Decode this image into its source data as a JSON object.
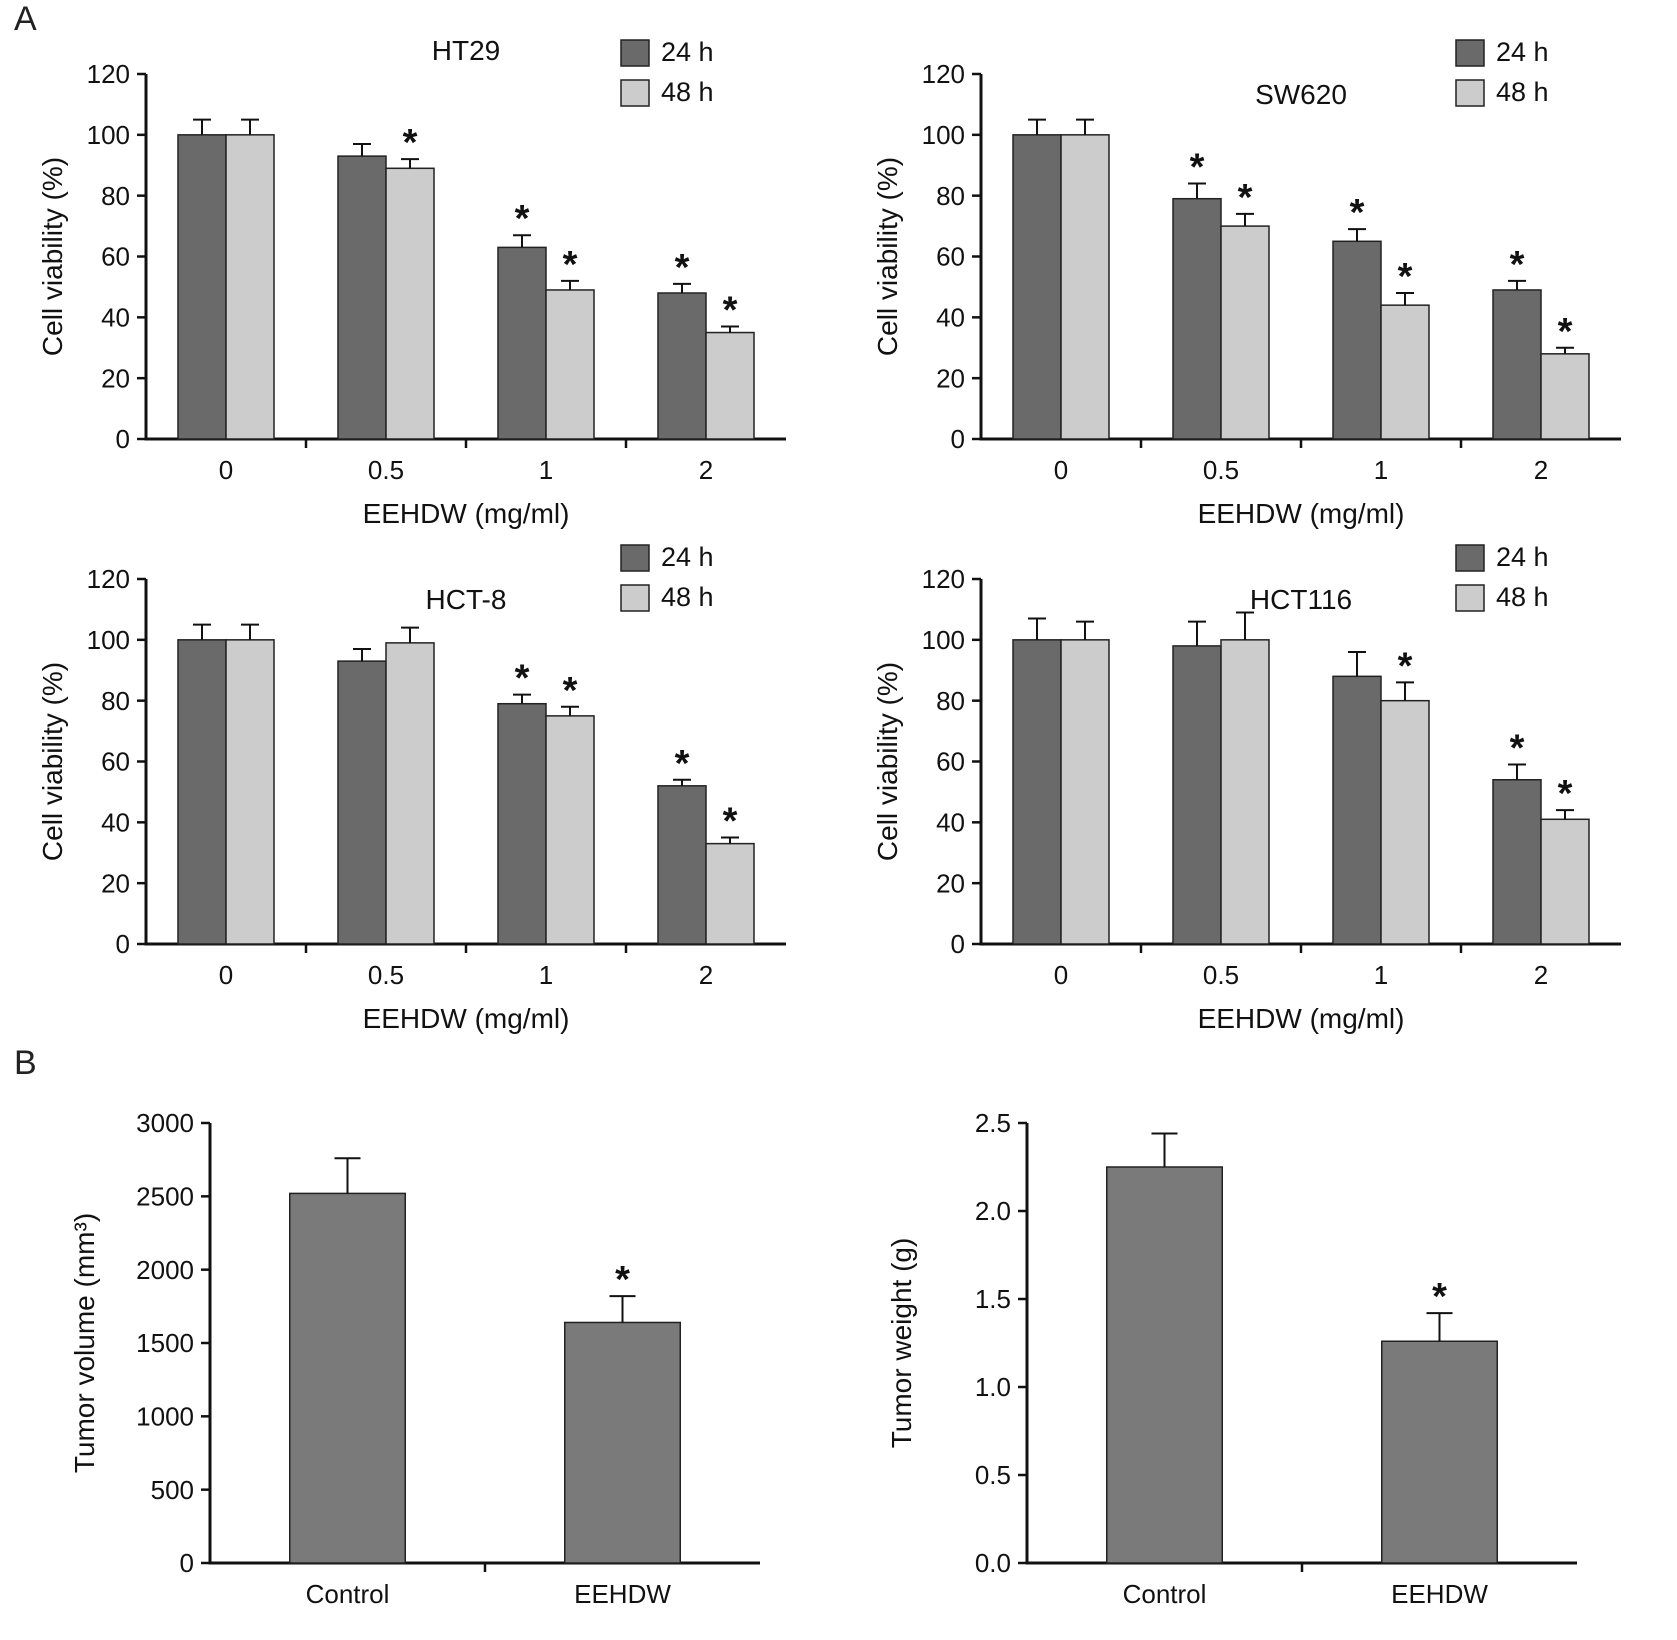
{
  "panels": {
    "a": {
      "label": "A"
    },
    "b": {
      "label": "B"
    }
  },
  "colors": {
    "series_24h": "#6a6a6a",
    "series_48h": "#cccccc",
    "tumor_bar": "#7a7a7a"
  },
  "chart_data": [
    {
      "id": "ht29",
      "type": "bar",
      "panel": "a",
      "title": "HT29",
      "title_inside": false,
      "categories": [
        "0",
        "0.5",
        "1",
        "2"
      ],
      "xlabel": "EEHDW (mg/ml)",
      "ylabel": "Cell viability (%)",
      "ylim": [
        0,
        120
      ],
      "ytick_step": 20,
      "ytick_decimals": 0,
      "legend_show": true,
      "legend_position": "top-right",
      "grid": false,
      "series": [
        {
          "name": "24 h",
          "color": "#6a6a6a",
          "values": [
            100,
            93,
            63,
            48
          ],
          "errors": [
            5,
            4,
            4,
            3
          ],
          "sig": [
            false,
            false,
            true,
            true
          ]
        },
        {
          "name": "48 h",
          "color": "#cccccc",
          "values": [
            100,
            89,
            49,
            35
          ],
          "errors": [
            5,
            3,
            3,
            2
          ],
          "sig": [
            false,
            true,
            true,
            true
          ]
        }
      ]
    },
    {
      "id": "sw620",
      "type": "bar",
      "panel": "a",
      "title": "SW620",
      "title_inside": true,
      "categories": [
        "0",
        "0.5",
        "1",
        "2"
      ],
      "xlabel": "EEHDW (mg/ml)",
      "ylabel": "Cell viability (%)",
      "ylim": [
        0,
        120
      ],
      "ytick_step": 20,
      "ytick_decimals": 0,
      "legend_show": true,
      "legend_position": "top-right",
      "grid": false,
      "series": [
        {
          "name": "24 h",
          "color": "#6a6a6a",
          "values": [
            100,
            79,
            65,
            49
          ],
          "errors": [
            5,
            5,
            4,
            3
          ],
          "sig": [
            false,
            true,
            true,
            true
          ]
        },
        {
          "name": "48 h",
          "color": "#cccccc",
          "values": [
            100,
            70,
            44,
            28
          ],
          "errors": [
            5,
            4,
            4,
            2
          ],
          "sig": [
            false,
            true,
            true,
            true
          ]
        }
      ]
    },
    {
      "id": "hct8",
      "type": "bar",
      "panel": "a",
      "title": "HCT-8",
      "title_inside": true,
      "categories": [
        "0",
        "0.5",
        "1",
        "2"
      ],
      "xlabel": "EEHDW (mg/ml)",
      "ylabel": "Cell viability (%)",
      "ylim": [
        0,
        120
      ],
      "ytick_step": 20,
      "ytick_decimals": 0,
      "legend_show": true,
      "legend_position": "top-right",
      "grid": false,
      "series": [
        {
          "name": "24 h",
          "color": "#6a6a6a",
          "values": [
            100,
            93,
            79,
            52
          ],
          "errors": [
            5,
            4,
            3,
            2
          ],
          "sig": [
            false,
            false,
            true,
            true
          ]
        },
        {
          "name": "48 h",
          "color": "#cccccc",
          "values": [
            100,
            99,
            75,
            33
          ],
          "errors": [
            5,
            5,
            3,
            2
          ],
          "sig": [
            false,
            false,
            true,
            true
          ]
        }
      ]
    },
    {
      "id": "hct116",
      "type": "bar",
      "panel": "a",
      "title": "HCT116",
      "title_inside": true,
      "categories": [
        "0",
        "0.5",
        "1",
        "2"
      ],
      "xlabel": "EEHDW (mg/ml)",
      "ylabel": "Cell viability (%)",
      "ylim": [
        0,
        120
      ],
      "ytick_step": 20,
      "ytick_decimals": 0,
      "legend_show": true,
      "legend_position": "top-right",
      "grid": false,
      "series": [
        {
          "name": "24 h",
          "color": "#6a6a6a",
          "values": [
            100,
            98,
            88,
            54
          ],
          "errors": [
            7,
            8,
            8,
            5
          ],
          "sig": [
            false,
            false,
            false,
            true
          ]
        },
        {
          "name": "48 h",
          "color": "#cccccc",
          "values": [
            100,
            100,
            80,
            41
          ],
          "errors": [
            6,
            9,
            6,
            3
          ],
          "sig": [
            false,
            false,
            true,
            true
          ]
        }
      ]
    },
    {
      "id": "tumor-volume",
      "type": "bar",
      "panel": "b",
      "title": "",
      "title_inside": false,
      "categories": [
        "Control",
        "EEHDW"
      ],
      "xlabel": "",
      "ylabel": "Tumor volume (mm³)",
      "ylim": [
        0,
        3000
      ],
      "ytick_step": 500,
      "ytick_decimals": 0,
      "legend_show": false,
      "grid": false,
      "series": [
        {
          "name": "Tumor volume",
          "color": "#7a7a7a",
          "values": [
            2520,
            1640
          ],
          "errors": [
            240,
            180
          ],
          "sig": [
            false,
            true
          ]
        }
      ]
    },
    {
      "id": "tumor-weight",
      "type": "bar",
      "panel": "b",
      "title": "",
      "title_inside": false,
      "categories": [
        "Control",
        "EEHDW"
      ],
      "xlabel": "",
      "ylabel": "Tumor weight (g)",
      "ylim": [
        0,
        2.5
      ],
      "ytick_step": 0.5,
      "ytick_decimals": 1,
      "legend_show": false,
      "grid": false,
      "series": [
        {
          "name": "Tumor weight",
          "color": "#7a7a7a",
          "values": [
            2.25,
            1.26
          ],
          "errors": [
            0.19,
            0.16
          ],
          "sig": [
            false,
            true
          ]
        }
      ]
    }
  ]
}
